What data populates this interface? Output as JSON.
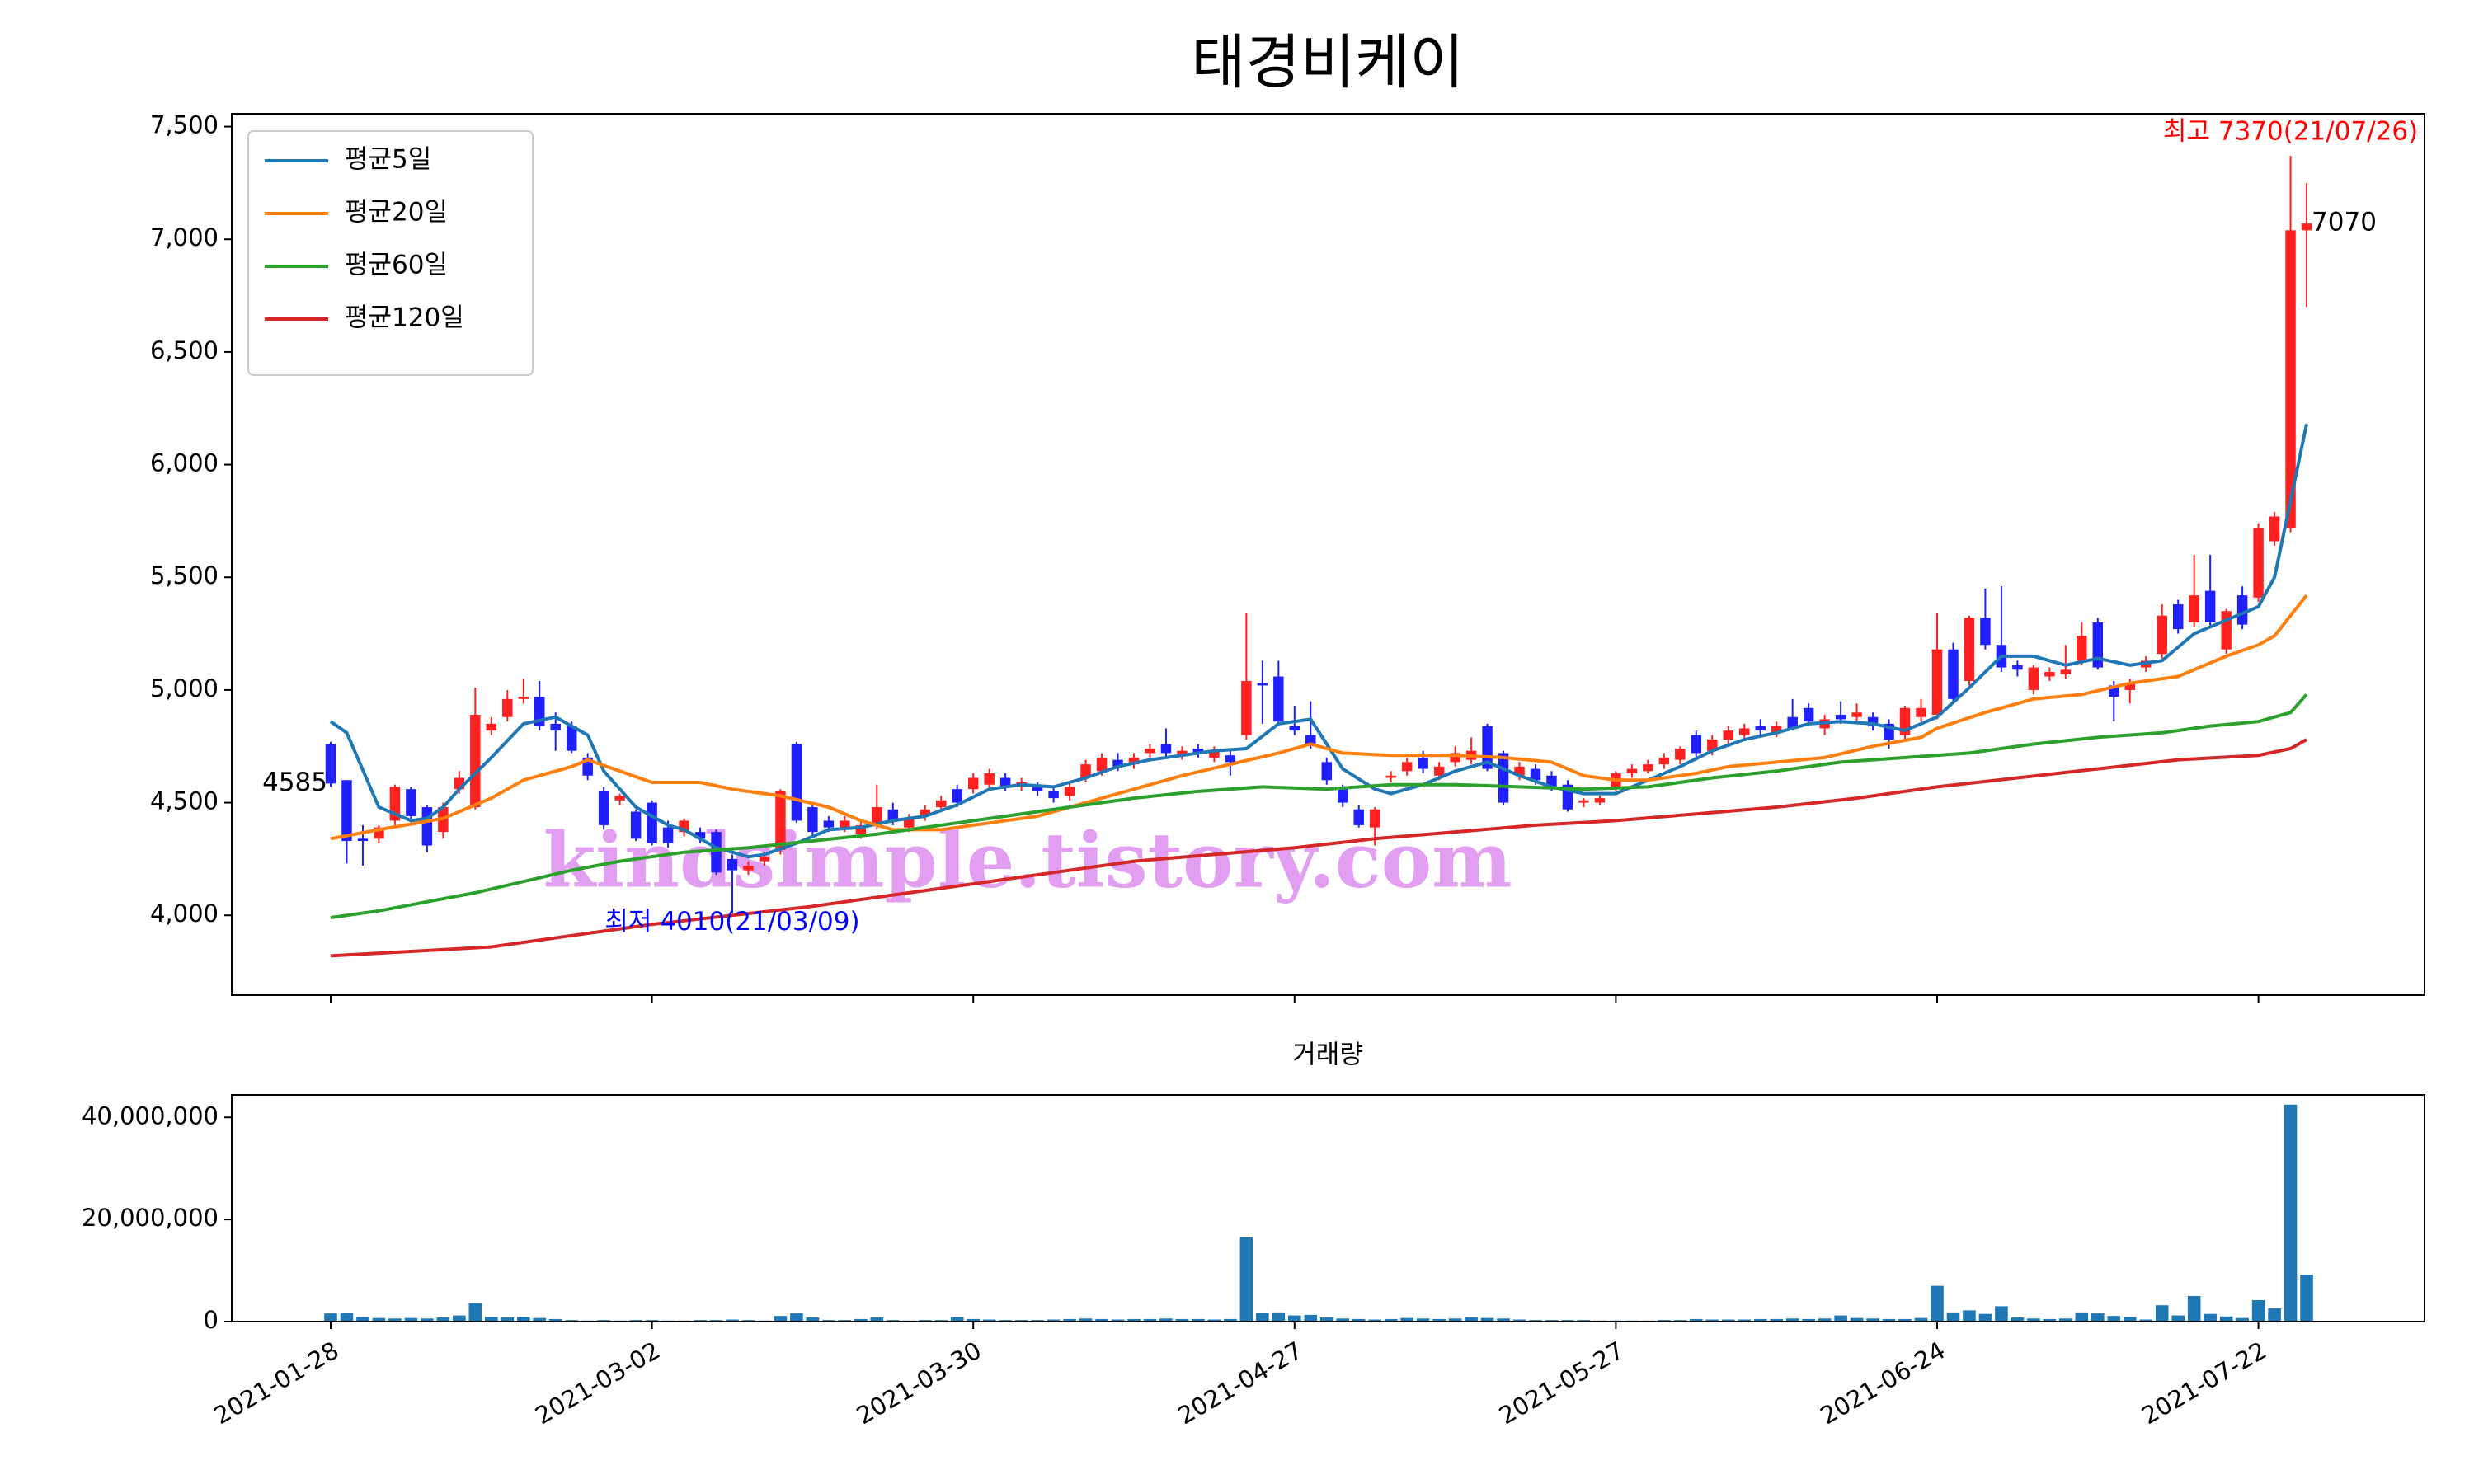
{
  "chart_data": [
    {
      "type": "candlestick",
      "title": "태경비케이",
      "open": [
        4760,
        4600,
        4340,
        4340,
        4420,
        4560,
        4480,
        4370,
        4560,
        4480,
        4820,
        4880,
        4960,
        4970,
        4850,
        4840,
        4700,
        4550,
        4510,
        4460,
        4500,
        4390,
        4370,
        4370,
        4370,
        4250,
        4200,
        4240,
        4290,
        4760,
        4480,
        4420,
        4390,
        4360,
        4400,
        4470,
        4390,
        4440,
        4480,
        4560,
        4560,
        4580,
        4610,
        4570,
        4570,
        4550,
        4530,
        4610,
        4640,
        4690,
        4670,
        4720,
        4760,
        4710,
        4740,
        4700,
        4710,
        4800,
        5030,
        5060,
        4840,
        4800,
        4680,
        4560,
        4470,
        4390,
        4610,
        4640,
        4700,
        4620,
        4680,
        4690,
        4840,
        4720,
        4620,
        4650,
        4620,
        4580,
        4500,
        4500,
        4570,
        4630,
        4640,
        4670,
        4690,
        4800,
        4730,
        4780,
        4800,
        4840,
        4810,
        4880,
        4920,
        4830,
        4890,
        4880,
        4880,
        4850,
        4800,
        4880,
        4890,
        5180,
        5040,
        5320,
        5200,
        5110,
        5000,
        5060,
        5070,
        5130,
        5300,
        5020,
        5000,
        5100,
        5160,
        5380,
        5300,
        5440,
        5180,
        5420,
        5410,
        5660,
        5720,
        7040
      ],
      "high": [
        4770,
        4600,
        4400,
        4400,
        4580,
        4570,
        4490,
        4500,
        4640,
        5010,
        4880,
        5000,
        5050,
        5040,
        4900,
        4860,
        4720,
        4570,
        4540,
        4470,
        4510,
        4420,
        4430,
        4390,
        4380,
        4270,
        4240,
        4280,
        4560,
        4770,
        4500,
        4440,
        4440,
        4420,
        4580,
        4500,
        4450,
        4490,
        4530,
        4580,
        4630,
        4650,
        4630,
        4610,
        4590,
        4570,
        4590,
        4690,
        4720,
        4720,
        4720,
        4760,
        4830,
        4750,
        4760,
        4750,
        4730,
        5340,
        5130,
        5130,
        4930,
        4950,
        4700,
        4580,
        4490,
        4480,
        4640,
        4700,
        4730,
        4680,
        4750,
        4790,
        4850,
        4730,
        4680,
        4670,
        4640,
        4600,
        4520,
        4530,
        4640,
        4670,
        4690,
        4720,
        4750,
        4820,
        4800,
        4840,
        4850,
        4870,
        4860,
        4960,
        4940,
        4890,
        4950,
        4940,
        4900,
        4870,
        4930,
        4960,
        5340,
        5210,
        5330,
        5450,
        5460,
        5130,
        5110,
        5100,
        5200,
        5300,
        5320,
        5040,
        5050,
        5150,
        5380,
        5400,
        5600,
        5600,
        5360,
        5460,
        5740,
        5790,
        7370,
        7250
      ],
      "low": [
        4570,
        4230,
        4220,
        4320,
        4400,
        4420,
        4280,
        4340,
        4540,
        4470,
        4800,
        4860,
        4940,
        4820,
        4730,
        4720,
        4600,
        4380,
        4490,
        4330,
        4310,
        4300,
        4350,
        4320,
        4180,
        4010,
        4180,
        4220,
        4270,
        4410,
        4350,
        4370,
        4370,
        4340,
        4380,
        4400,
        4370,
        4420,
        4460,
        4480,
        4540,
        4560,
        4550,
        4550,
        4530,
        4500,
        4510,
        4590,
        4620,
        4640,
        4650,
        4700,
        4700,
        4690,
        4700,
        4680,
        4620,
        4780,
        4850,
        4840,
        4800,
        4740,
        4580,
        4480,
        4390,
        4310,
        4590,
        4620,
        4630,
        4600,
        4660,
        4670,
        4640,
        4490,
        4600,
        4580,
        4550,
        4460,
        4480,
        4490,
        4550,
        4610,
        4630,
        4650,
        4670,
        4700,
        4710,
        4760,
        4780,
        4790,
        4790,
        4820,
        4840,
        4800,
        4850,
        4860,
        4820,
        4740,
        4780,
        4860,
        4870,
        4940,
        5020,
        5180,
        5080,
        5060,
        4980,
        5040,
        5050,
        5110,
        5090,
        4860,
        4940,
        5080,
        5140,
        5250,
        5280,
        5280,
        5160,
        5270,
        5390,
        5640,
        5700,
        6700
      ],
      "close": [
        4585,
        4330,
        4330,
        4390,
        4570,
        4440,
        4310,
        4480,
        4610,
        4890,
        4850,
        4960,
        4970,
        4840,
        4820,
        4730,
        4620,
        4400,
        4530,
        4340,
        4320,
        4320,
        4420,
        4340,
        4190,
        4200,
        4220,
        4260,
        4550,
        4420,
        4370,
        4390,
        4420,
        4400,
        4480,
        4420,
        4430,
        4470,
        4510,
        4500,
        4610,
        4630,
        4570,
        4590,
        4550,
        4520,
        4570,
        4670,
        4700,
        4660,
        4700,
        4740,
        4720,
        4730,
        4720,
        4730,
        4680,
        5040,
        5020,
        4860,
        4820,
        4760,
        4600,
        4500,
        4400,
        4470,
        4620,
        4680,
        4650,
        4660,
        4720,
        4730,
        4650,
        4500,
        4660,
        4600,
        4570,
        4470,
        4510,
        4520,
        4630,
        4650,
        4670,
        4700,
        4740,
        4720,
        4780,
        4820,
        4830,
        4820,
        4840,
        4830,
        4860,
        4870,
        4870,
        4900,
        4840,
        4780,
        4920,
        4920,
        5180,
        4960,
        5320,
        5200,
        5100,
        5090,
        5100,
        5080,
        5090,
        5240,
        5100,
        4970,
        5030,
        5130,
        5330,
        5270,
        5420,
        5300,
        5350,
        5290,
        5720,
        5770,
        7040,
        7070
      ],
      "up_color": "#ff2020",
      "down_color": "#2020ff",
      "series": [
        {
          "name": "평균5일",
          "color": "#1f77b4",
          "x": [
            0,
            1,
            3,
            5,
            6,
            7,
            8,
            10,
            12,
            14,
            16,
            17,
            19,
            21,
            22,
            24,
            26,
            27,
            29,
            31,
            33,
            35,
            37,
            39,
            41,
            43,
            45,
            47,
            49,
            51,
            53,
            55,
            57,
            59,
            61,
            62,
            63,
            65,
            66,
            68,
            70,
            72,
            74,
            76,
            78,
            80,
            82,
            84,
            86,
            88,
            90,
            92,
            94,
            96,
            98,
            100,
            102,
            104,
            106,
            108,
            110,
            112,
            114,
            116,
            118,
            120,
            121,
            123
          ],
          "values": [
            4860,
            4810,
            4480,
            4420,
            4430,
            4480,
            4560,
            4700,
            4850,
            4880,
            4800,
            4640,
            4480,
            4400,
            4380,
            4300,
            4260,
            4270,
            4320,
            4380,
            4390,
            4420,
            4440,
            4490,
            4560,
            4580,
            4570,
            4610,
            4660,
            4690,
            4710,
            4730,
            4740,
            4850,
            4870,
            4760,
            4650,
            4560,
            4540,
            4580,
            4640,
            4680,
            4620,
            4570,
            4540,
            4540,
            4600,
            4660,
            4730,
            4780,
            4810,
            4850,
            4860,
            4850,
            4820,
            4880,
            5010,
            5150,
            5150,
            5110,
            5140,
            5110,
            5130,
            5250,
            5310,
            5370,
            5500,
            6180
          ]
        },
        {
          "name": "평균20일",
          "color": "#ff7f0e",
          "x": [
            0,
            3,
            7,
            10,
            12,
            15,
            16,
            18,
            20,
            23,
            25,
            28,
            31,
            33,
            35,
            38,
            41,
            44,
            47,
            50,
            53,
            56,
            59,
            61,
            63,
            66,
            70,
            73,
            76,
            78,
            80,
            82,
            85,
            87,
            90,
            93,
            96,
            99,
            100,
            103,
            106,
            109,
            112,
            115,
            118,
            120,
            121,
            123
          ],
          "values": [
            4340,
            4380,
            4430,
            4520,
            4600,
            4660,
            4690,
            4640,
            4590,
            4590,
            4560,
            4530,
            4480,
            4420,
            4380,
            4380,
            4410,
            4440,
            4500,
            4560,
            4620,
            4670,
            4720,
            4760,
            4720,
            4710,
            4710,
            4700,
            4680,
            4620,
            4600,
            4600,
            4630,
            4660,
            4680,
            4700,
            4750,
            4790,
            4830,
            4900,
            4960,
            4980,
            5030,
            5060,
            5150,
            5200,
            5240,
            5420
          ]
        },
        {
          "name": "평균60일",
          "color": "#2ca02c",
          "x": [
            0,
            3,
            6,
            9,
            12,
            15,
            18,
            22,
            26,
            30,
            34,
            38,
            42,
            46,
            50,
            54,
            58,
            62,
            66,
            70,
            74,
            78,
            82,
            86,
            90,
            94,
            98,
            102,
            106,
            110,
            114,
            117,
            120,
            122,
            123
          ],
          "values": [
            3990,
            4020,
            4060,
            4100,
            4150,
            4200,
            4240,
            4280,
            4300,
            4330,
            4360,
            4400,
            4440,
            4480,
            4520,
            4550,
            4570,
            4560,
            4580,
            4580,
            4570,
            4560,
            4570,
            4610,
            4640,
            4680,
            4700,
            4720,
            4760,
            4790,
            4810,
            4840,
            4860,
            4900,
            4980
          ]
        },
        {
          "name": "평균120일",
          "color": "#d62728",
          "x": [
            0,
            5,
            10,
            15,
            20,
            25,
            30,
            35,
            40,
            45,
            50,
            55,
            60,
            65,
            70,
            75,
            80,
            85,
            90,
            95,
            100,
            105,
            110,
            115,
            120,
            122,
            123
          ],
          "values": [
            3820,
            3840,
            3860,
            3910,
            3960,
            4000,
            4040,
            4090,
            4140,
            4190,
            4240,
            4270,
            4300,
            4340,
            4370,
            4400,
            4420,
            4450,
            4480,
            4520,
            4570,
            4610,
            4650,
            4690,
            4710,
            4740,
            4780
          ]
        }
      ],
      "legend": "upper left",
      "ylim": [
        3646,
        7557
      ],
      "yticks": [
        {
          "value": 4000,
          "label": "4,000"
        },
        {
          "value": 4500,
          "label": "4,500"
        },
        {
          "value": 5000,
          "label": "5,000"
        },
        {
          "value": 5500,
          "label": "5,500"
        },
        {
          "value": 6000,
          "label": "6,000"
        },
        {
          "value": 6500,
          "label": "6,500"
        },
        {
          "value": 7000,
          "label": "7,000"
        },
        {
          "value": 7500,
          "label": "7,500"
        }
      ],
      "max_label": "최고 7370(21/07/26)",
      "min_label": "최저 4010(21/03/09)",
      "first_label": "4585",
      "last_label": "7070",
      "watermark": "kindsimple.tistory.com"
    },
    {
      "type": "bar",
      "title": "거래량",
      "color": "#1f77b4",
      "categories": [
        "2021-01-28",
        null,
        null,
        null,
        null,
        null,
        null,
        null,
        null,
        null,
        null,
        null,
        null,
        null,
        null,
        null,
        null,
        null,
        null,
        null,
        "2021-03-02",
        null,
        null,
        null,
        null,
        null,
        null,
        null,
        null,
        null,
        null,
        null,
        null,
        null,
        null,
        null,
        null,
        null,
        null,
        null,
        "2021-03-30",
        null,
        null,
        null,
        null,
        null,
        null,
        null,
        null,
        null,
        null,
        null,
        null,
        null,
        null,
        null,
        null,
        null,
        null,
        null,
        "2021-04-27",
        null,
        null,
        null,
        null,
        null,
        null,
        null,
        null,
        null,
        null,
        null,
        null,
        null,
        null,
        null,
        null,
        null,
        null,
        null,
        "2021-05-27",
        null,
        null,
        null,
        null,
        null,
        null,
        null,
        null,
        null,
        null,
        null,
        null,
        null,
        null,
        null,
        null,
        null,
        null,
        null,
        "2021-06-24",
        null,
        null,
        null,
        null,
        null,
        null,
        null,
        null,
        null,
        null,
        null,
        null,
        null,
        null,
        null,
        null,
        null,
        null,
        null,
        "2021-07-22",
        null,
        null,
        null
      ],
      "values": [
        1600000,
        1700000,
        900000,
        700000,
        600000,
        700000,
        600000,
        800000,
        1200000,
        3600000,
        900000,
        800000,
        900000,
        700000,
        500000,
        300000,
        200000,
        300000,
        200000,
        300000,
        300000,
        200000,
        200000,
        300000,
        300000,
        400000,
        300000,
        200000,
        1100000,
        1600000,
        800000,
        300000,
        300000,
        500000,
        800000,
        300000,
        200000,
        300000,
        300000,
        900000,
        500000,
        400000,
        300000,
        300000,
        300000,
        400000,
        500000,
        600000,
        500000,
        400000,
        500000,
        500000,
        600000,
        500000,
        500000,
        400000,
        500000,
        16500000,
        1700000,
        1800000,
        1200000,
        1300000,
        800000,
        600000,
        500000,
        400000,
        500000,
        700000,
        600000,
        500000,
        600000,
        800000,
        700000,
        600000,
        400000,
        300000,
        300000,
        300000,
        300000,
        200000,
        200000,
        200000,
        200000,
        300000,
        300000,
        500000,
        400000,
        400000,
        400000,
        500000,
        500000,
        600000,
        500000,
        600000,
        1200000,
        700000,
        600000,
        500000,
        500000,
        700000,
        7000000,
        1800000,
        2200000,
        1500000,
        3000000,
        800000,
        600000,
        500000,
        600000,
        1800000,
        1600000,
        1100000,
        900000,
        400000,
        3200000,
        1200000,
        5000000,
        1500000,
        1000000,
        700000,
        4200000,
        2600000,
        42500000,
        9200000
      ],
      "ylim": [
        0,
        44400000
      ],
      "yticks": [
        0,
        {
          "value": 20000000,
          "label": "20,000,000"
        },
        {
          "value": 40000000,
          "label": "40,000,000"
        }
      ]
    }
  ]
}
